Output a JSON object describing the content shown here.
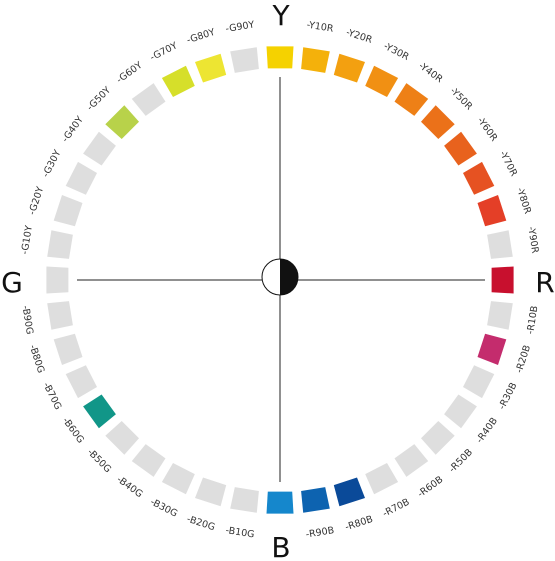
{
  "poles": {
    "top": "Y",
    "right": "R",
    "bottom": "B",
    "left": "G"
  },
  "segments": [
    {
      "label": "",
      "color": "#f5d200"
    },
    {
      "label": "-Y10R",
      "color": "#f4b10b"
    },
    {
      "label": "-Y20R",
      "color": "#f3a010"
    },
    {
      "label": "-Y30R",
      "color": "#f19013"
    },
    {
      "label": "-Y40R",
      "color": "#ee8016"
    },
    {
      "label": "-Y50R",
      "color": "#eb7119"
    },
    {
      "label": "-Y60R",
      "color": "#e8621d"
    },
    {
      "label": "-Y70R",
      "color": "#e65222"
    },
    {
      "label": "-Y80R",
      "color": "#e43f27"
    },
    {
      "label": "-Y90R",
      "color": "#dedede"
    },
    {
      "label": "",
      "color": "#c8102e"
    },
    {
      "label": "-R10B",
      "color": "#dedede"
    },
    {
      "label": "-R20B",
      "color": "#c42c6d"
    },
    {
      "label": "-R30B",
      "color": "#dedede"
    },
    {
      "label": "-R40B",
      "color": "#dedede"
    },
    {
      "label": "-R50B",
      "color": "#dedede"
    },
    {
      "label": "-R60B",
      "color": "#dedede"
    },
    {
      "label": "-R70B",
      "color": "#dedede"
    },
    {
      "label": "-R80B",
      "color": "#0a4a99"
    },
    {
      "label": "-R90B",
      "color": "#0d63b0"
    },
    {
      "label": "",
      "color": "#1587cc"
    },
    {
      "label": "-B10G",
      "color": "#dedede"
    },
    {
      "label": "-B20G",
      "color": "#dedede"
    },
    {
      "label": "-B30G",
      "color": "#dedede"
    },
    {
      "label": "-B40G",
      "color": "#dedede"
    },
    {
      "label": "-B50G",
      "color": "#dedede"
    },
    {
      "label": "-B60G",
      "color": "#119688"
    },
    {
      "label": "-B70G",
      "color": "#dedede"
    },
    {
      "label": "-B80G",
      "color": "#dedede"
    },
    {
      "label": "-B90G",
      "color": "#dedede"
    },
    {
      "label": "",
      "color": "#dedede"
    },
    {
      "label": "-G10Y",
      "color": "#dedede"
    },
    {
      "label": "-G20Y",
      "color": "#dedede"
    },
    {
      "label": "-G30Y",
      "color": "#dedede"
    },
    {
      "label": "-G40Y",
      "color": "#dedede"
    },
    {
      "label": "-G50Y",
      "color": "#b8d24a"
    },
    {
      "label": "-G60Y",
      "color": "#dedede"
    },
    {
      "label": "-G70Y",
      "color": "#d6df2a"
    },
    {
      "label": "-G80Y",
      "color": "#ede532"
    },
    {
      "label": "-G90Y",
      "color": "#dedede"
    }
  ],
  "colors": {
    "axis_line": "#222222",
    "center_dark": "#111111",
    "center_light": "#ffffff"
  }
}
